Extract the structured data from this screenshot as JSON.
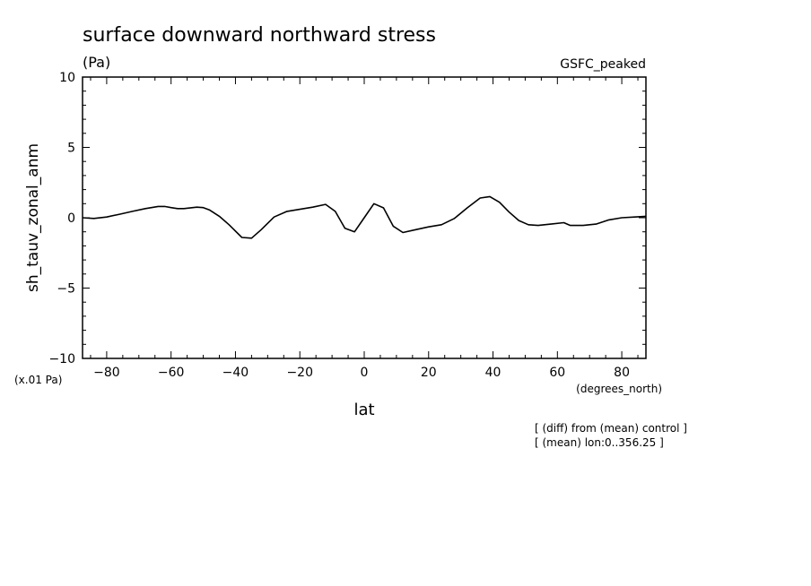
{
  "chart_data": {
    "type": "line",
    "title": "surface downward northward stress",
    "subtitle": "(Pa)",
    "legend_text": "GSFC_peaked",
    "ylabel": "sh_tauv_zonal_anm",
    "xlabel": "lat",
    "y_scale_note": "(x.01 Pa)",
    "x_unit": "(degrees_north)",
    "notes": [
      "[ (diff) from (mean) control ]",
      "[ (mean) lon:0..356.25 ]"
    ],
    "xlim": [
      -87.5,
      87.5
    ],
    "ylim": [
      -10,
      10
    ],
    "x_ticks": [
      -80,
      -60,
      -40,
      -20,
      0,
      20,
      40,
      60,
      80
    ],
    "x_tick_labels": [
      "−80",
      "−60",
      "−40",
      "−20",
      "0",
      "20",
      "40",
      "60",
      "80"
    ],
    "y_ticks": [
      10,
      5,
      0,
      -5,
      -10
    ],
    "y_tick_labels": [
      "10",
      "5",
      "0",
      "−5",
      "−10"
    ],
    "grid": false,
    "series": [
      {
        "x": [
          -87.5,
          -84,
          -80,
          -76,
          -72,
          -68,
          -64,
          -62,
          -60,
          -58,
          -56,
          -52,
          -50,
          -48,
          -45,
          -42,
          -38,
          -35,
          -32,
          -28,
          -24,
          -20,
          -16,
          -12,
          -9,
          -6,
          -3,
          0,
          3,
          6,
          9,
          12,
          16,
          20,
          24,
          28,
          32,
          36,
          39,
          42,
          45,
          48,
          51,
          54,
          58,
          62,
          64,
          68,
          72,
          76,
          80,
          84,
          87.5
        ],
        "y": [
          0.0,
          -0.05,
          0.05,
          0.25,
          0.45,
          0.65,
          0.8,
          0.8,
          0.72,
          0.65,
          0.65,
          0.75,
          0.72,
          0.55,
          0.1,
          -0.5,
          -1.4,
          -1.45,
          -0.85,
          0.05,
          0.45,
          0.6,
          0.75,
          0.95,
          0.45,
          -0.75,
          -1.0,
          0.0,
          1.0,
          0.7,
          -0.6,
          -1.05,
          -0.85,
          -0.65,
          -0.5,
          -0.05,
          0.7,
          1.4,
          1.5,
          1.1,
          0.4,
          -0.2,
          -0.5,
          -0.55,
          -0.45,
          -0.35,
          -0.55,
          -0.55,
          -0.45,
          -0.15,
          0.0,
          0.05,
          0.1
        ]
      }
    ]
  }
}
